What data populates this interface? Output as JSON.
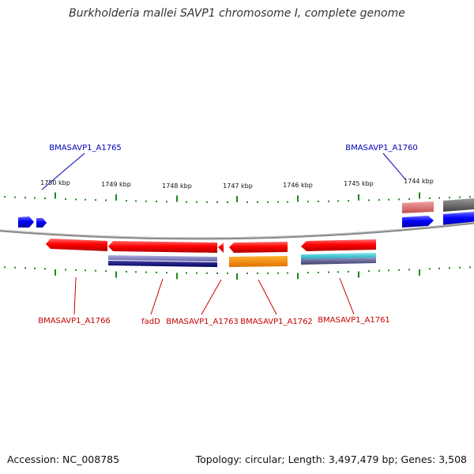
{
  "title": "Burkholderia mallei SAVP1 chromosome I, complete genome",
  "footer": {
    "accession": "Accession: NC_008785",
    "summary": "Topology: circular; Length: 3,497,479 bp; Genes: 3,508"
  },
  "scale_labels": [
    "1750 kbp",
    "1749 kbp",
    "1748 kbp",
    "1747 kbp",
    "1746 kbp",
    "1745 kbp",
    "1744 kbp"
  ],
  "genes_above": [
    {
      "label": "BMASAVP1_A1765",
      "color": "#0000b4"
    },
    {
      "label": "BMASAVP1_A1760",
      "color": "#0000b4"
    }
  ],
  "genes_below": [
    {
      "label": "BMASAVP1_A1766",
      "color": "#c80000"
    },
    {
      "label": "fadD",
      "color": "#c80000"
    },
    {
      "label": "BMASAVP1_A1763",
      "color": "#c80000"
    },
    {
      "label": "BMASAVP1_A1762",
      "color": "#c80000"
    },
    {
      "label": "BMASAVP1_A1761",
      "color": "#c80000"
    }
  ],
  "colors": {
    "forward_cds": "#0000ff",
    "reverse_cds": "#ff0000",
    "backbone": "#888888",
    "tick": "#1a8a1a"
  }
}
